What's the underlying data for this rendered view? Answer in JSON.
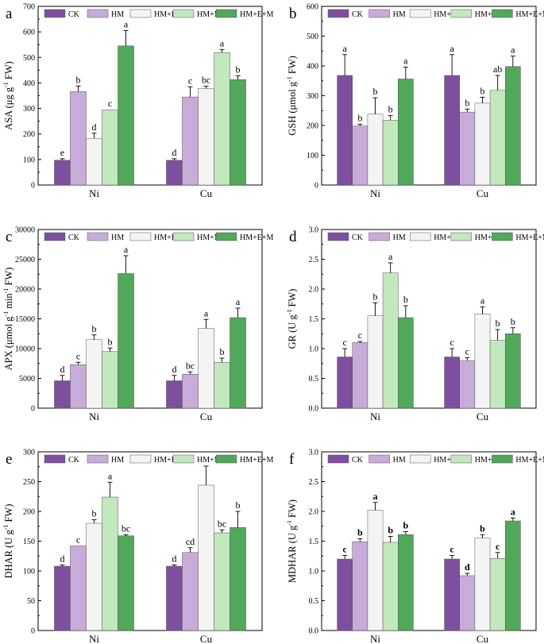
{
  "series_colors": {
    "CK": "#7f4f9f",
    "HM": "#c7acd9",
    "HM+E": "#f4f4f4",
    "HM+M": "#c2e8bd",
    "HM+E+M": "#52a85a"
  },
  "chart_data": [
    {
      "type": "bar",
      "panel_label": "a",
      "title": "",
      "xlabel": "",
      "ylabel_parts": [
        "ASA (μg g",
        "-1",
        " FW)"
      ],
      "categories": [
        "Ni",
        "Cu"
      ],
      "ylim": [
        0,
        700
      ],
      "yticks": [
        0,
        100,
        200,
        300,
        400,
        500,
        600,
        700
      ],
      "ytick_labels": [
        "0",
        "100",
        "200",
        "300",
        "400",
        "500",
        "600",
        "700"
      ],
      "letter_style": "normal",
      "legend": [
        "CK",
        "HM",
        "HM+E",
        "HM+M",
        "HM+E+M"
      ],
      "series": [
        {
          "name": "CK",
          "values": [
            97,
            97
          ],
          "errors": [
            6,
            6
          ],
          "letters": [
            "e",
            "d"
          ]
        },
        {
          "name": "HM",
          "values": [
            366,
            345
          ],
          "errors": [
            22,
            40
          ],
          "letters": [
            "b",
            "c"
          ]
        },
        {
          "name": "HM+E",
          "values": [
            183,
            378
          ],
          "errors": [
            20,
            9
          ],
          "letters": [
            "d",
            "bc"
          ]
        },
        {
          "name": "HM+M",
          "values": [
            295,
            519
          ],
          "errors": [
            0,
            12
          ],
          "letters": [
            "c",
            "a"
          ]
        },
        {
          "name": "HM+E+M",
          "values": [
            545,
            413
          ],
          "errors": [
            60,
            15
          ],
          "letters": [
            "a",
            "b"
          ]
        }
      ]
    },
    {
      "type": "bar",
      "panel_label": "b",
      "title": "",
      "xlabel": "",
      "ylabel_parts": [
        "GSH (μmol g",
        "-1",
        " FW)"
      ],
      "categories": [
        "Ni",
        "Cu"
      ],
      "ylim": [
        0,
        600
      ],
      "yticks": [
        0,
        100,
        200,
        300,
        400,
        500,
        600
      ],
      "ytick_labels": [
        "0",
        "100",
        "200",
        "300",
        "400",
        "500",
        "600"
      ],
      "letter_style": "normal",
      "legend": [
        "CK",
        "HM",
        "HM+E",
        "HM+M",
        "HM+E+M"
      ],
      "series": [
        {
          "name": "CK",
          "values": [
            368,
            368
          ],
          "errors": [
            70,
            70
          ],
          "letters": [
            "a",
            "a"
          ]
        },
        {
          "name": "HM",
          "values": [
            198,
            245
          ],
          "errors": [
            6,
            10
          ],
          "letters": [
            "b",
            "b"
          ]
        },
        {
          "name": "HM+E",
          "values": [
            238,
            275
          ],
          "errors": [
            55,
            20
          ],
          "letters": [
            "b",
            "b"
          ]
        },
        {
          "name": "HM+M",
          "values": [
            218,
            318
          ],
          "errors": [
            15,
            50
          ],
          "letters": [
            "b",
            "ab"
          ]
        },
        {
          "name": "HM+E+M",
          "values": [
            356,
            398
          ],
          "errors": [
            40,
            35
          ],
          "letters": [
            "a",
            "a"
          ]
        }
      ]
    },
    {
      "type": "bar",
      "panel_label": "c",
      "title": "",
      "xlabel": "",
      "ylabel_parts": [
        "APX (μmol g",
        "-1",
        " min",
        "-1",
        " FW)"
      ],
      "categories": [
        "Ni",
        "Cu"
      ],
      "ylim": [
        0,
        30000
      ],
      "yticks": [
        0,
        5000,
        10000,
        15000,
        20000,
        25000,
        30000
      ],
      "ytick_labels": [
        "0",
        "5000",
        "10000",
        "15000",
        "20000",
        "25000",
        "30000"
      ],
      "letter_style": "normal",
      "legend": [
        "CK",
        "HM",
        "HM+E",
        "HM+M",
        "HM+E+M"
      ],
      "series": [
        {
          "name": "CK",
          "values": [
            4600,
            4600
          ],
          "errors": [
            900,
            900
          ],
          "letters": [
            "d",
            "d"
          ]
        },
        {
          "name": "HM",
          "values": [
            7300,
            5700
          ],
          "errors": [
            400,
            400
          ],
          "letters": [
            "c",
            "bc"
          ]
        },
        {
          "name": "HM+E",
          "values": [
            11500,
            13400
          ],
          "errors": [
            800,
            1500
          ],
          "letters": [
            "b",
            "a"
          ]
        },
        {
          "name": "HM+M",
          "values": [
            9500,
            7700
          ],
          "errors": [
            600,
            700
          ],
          "letters": [
            "b",
            "b"
          ]
        },
        {
          "name": "HM+E+M",
          "values": [
            22600,
            15200
          ],
          "errors": [
            3000,
            1600
          ],
          "letters": [
            "a",
            "a"
          ]
        }
      ]
    },
    {
      "type": "bar",
      "panel_label": "d",
      "title": "",
      "xlabel": "",
      "ylabel_parts": [
        "GR (U g",
        "-1",
        " FW)"
      ],
      "categories": [
        "Ni",
        "Cu"
      ],
      "ylim": [
        0,
        3.0
      ],
      "yticks": [
        0,
        0.5,
        1.0,
        1.5,
        2.0,
        2.5,
        3.0
      ],
      "ytick_labels": [
        "0.0",
        "0.5",
        "1.0",
        "1.5",
        "2.0",
        "2.5",
        "3.0"
      ],
      "letter_style": "normal",
      "legend": [
        "CK",
        "HM",
        "HM+E",
        "HM+M",
        "HM+E+M"
      ],
      "series": [
        {
          "name": "CK",
          "values": [
            0.86,
            0.86
          ],
          "errors": [
            0.14,
            0.14
          ],
          "letters": [
            "c",
            "c"
          ]
        },
        {
          "name": "HM",
          "values": [
            1.1,
            0.8
          ],
          "errors": [
            0.02,
            0.05
          ],
          "letters": [
            "c",
            "c"
          ]
        },
        {
          "name": "HM+E",
          "values": [
            1.55,
            1.58
          ],
          "errors": [
            0.22,
            0.12
          ],
          "letters": [
            "b",
            "a"
          ]
        },
        {
          "name": "HM+M",
          "values": [
            2.27,
            1.14
          ],
          "errors": [
            0.17,
            0.18
          ],
          "letters": [
            "a",
            "b"
          ]
        },
        {
          "name": "HM+E+M",
          "values": [
            1.52,
            1.25
          ],
          "errors": [
            0.2,
            0.1
          ],
          "letters": [
            "b",
            "b"
          ]
        }
      ]
    },
    {
      "type": "bar",
      "panel_label": "e",
      "title": "",
      "xlabel": "",
      "ylabel_parts": [
        "DHAR (U g",
        "-1",
        " FW)"
      ],
      "categories": [
        "Ni",
        "Cu"
      ],
      "ylim": [
        0,
        300
      ],
      "yticks": [
        0,
        50,
        100,
        150,
        200,
        250,
        300
      ],
      "ytick_labels": [
        "0",
        "50",
        "100",
        "150",
        "200",
        "250",
        "300"
      ],
      "letter_style": "normal",
      "legend": [
        "CK",
        "HM",
        "HM+E",
        "HM+M",
        "HM+E+M"
      ],
      "series": [
        {
          "name": "CK",
          "values": [
            108,
            108
          ],
          "errors": [
            2,
            2
          ],
          "letters": [
            "d",
            "d"
          ]
        },
        {
          "name": "HM",
          "values": [
            142,
            131
          ],
          "errors": [
            0,
            8
          ],
          "letters": [
            "c",
            "cd"
          ]
        },
        {
          "name": "HM+E",
          "values": [
            180,
            244
          ],
          "errors": [
            6,
            32
          ],
          "letters": [
            "b",
            ""
          ]
        },
        {
          "name": "HM+M",
          "values": [
            224,
            164
          ],
          "errors": [
            25,
            5
          ],
          "letters": [
            "a",
            "bc"
          ]
        },
        {
          "name": "HM+E+M",
          "values": [
            159,
            173
          ],
          "errors": [
            2,
            27
          ],
          "letters": [
            "bc",
            "b"
          ]
        }
      ]
    },
    {
      "type": "bar",
      "panel_label": "f",
      "title": "",
      "xlabel": "",
      "ylabel_parts": [
        "MDHAR (U g",
        "-1",
        " FW)"
      ],
      "categories": [
        "Ni",
        "Cu"
      ],
      "ylim": [
        0,
        3.0
      ],
      "yticks": [
        0,
        0.5,
        1.0,
        1.5,
        2.0,
        2.5,
        3.0
      ],
      "ytick_labels": [
        "0.0",
        "0.5",
        "1.0",
        "1.5",
        "2.0",
        "2.5",
        "3.0"
      ],
      "letter_style": "bold",
      "legend": [
        "CK",
        "HM",
        "HM+E",
        "HM+M",
        "HM+E+M"
      ],
      "series": [
        {
          "name": "CK",
          "values": [
            1.2,
            1.2
          ],
          "errors": [
            0.06,
            0.06
          ],
          "letters": [
            "c",
            "c"
          ]
        },
        {
          "name": "HM",
          "values": [
            1.49,
            0.92
          ],
          "errors": [
            0.05,
            0.04
          ],
          "letters": [
            "b",
            "d"
          ]
        },
        {
          "name": "HM+E",
          "values": [
            2.02,
            1.55
          ],
          "errors": [
            0.13,
            0.06
          ],
          "letters": [
            "a",
            "b"
          ]
        },
        {
          "name": "HM+M",
          "values": [
            1.48,
            1.21
          ],
          "errors": [
            0.1,
            0.1
          ],
          "letters": [
            "b",
            "c"
          ]
        },
        {
          "name": "HM+E+M",
          "values": [
            1.61,
            1.84
          ],
          "errors": [
            0.05,
            0.05
          ],
          "letters": [
            "b",
            "a"
          ]
        }
      ]
    }
  ]
}
